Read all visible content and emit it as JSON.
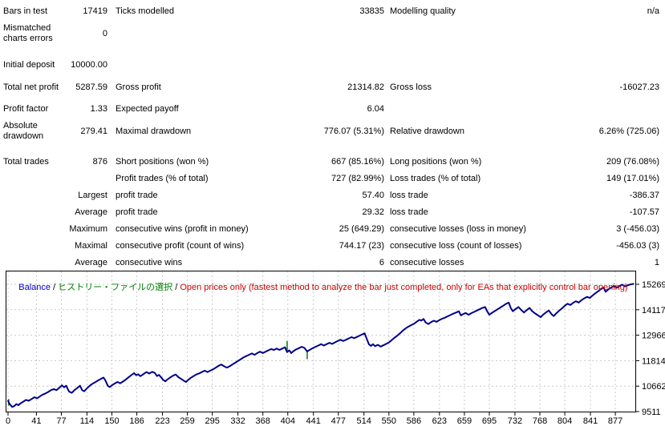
{
  "report": {
    "rows": [
      {
        "label1": "Bars in test",
        "value1": "17419",
        "label2": "Ticks modelled",
        "value2": "33835",
        "label3": "Modelling quality",
        "value3": "n/a"
      },
      {
        "label1": "Mismatched charts errors",
        "value1": "0",
        "label2": "",
        "value2": "",
        "label3": "",
        "value3": ""
      },
      {
        "label1": "Initial deposit",
        "value1": "10000.00",
        "label2": "",
        "value2": "",
        "label3": "",
        "value3": ""
      },
      {
        "label1": "Total net profit",
        "value1": "5287.59",
        "label2": "Gross profit",
        "value2": "21314.82",
        "label3": "Gross loss",
        "value3": "-16027.23"
      },
      {
        "label1": "Profit factor",
        "value1": "1.33",
        "label2": "Expected payoff",
        "value2": "6.04",
        "label3": "",
        "value3": ""
      },
      {
        "label1": "Absolute drawdown",
        "value1": "279.41",
        "label2": "Maximal drawdown",
        "value2": "776.07 (5.31%)",
        "label3": "Relative drawdown",
        "value3": "6.26% (725.06)"
      },
      {
        "label1": "Total trades",
        "value1": "876",
        "label2": "Short positions (won %)",
        "value2": "667 (85.16%)",
        "label3": "Long positions (won %)",
        "value3": "209 (76.08%)"
      },
      {
        "label1": "",
        "value1": "",
        "label2": "Profit trades (% of total)",
        "value2": "727 (82.99%)",
        "label3": "Loss trades (% of total)",
        "value3": "149 (17.01%)"
      },
      {
        "label1": "",
        "value1": "Largest",
        "label2": "profit trade",
        "value2": "57.40",
        "label3": "loss trade",
        "value3": "-386.37"
      },
      {
        "label1": "",
        "value1": "Average",
        "label2": "profit trade",
        "value2": "29.32",
        "label3": "loss trade",
        "value3": "-107.57"
      },
      {
        "label1": "",
        "value1": "Maximum",
        "label2": "consecutive wins (profit in money)",
        "value2": "25 (649.29)",
        "label3": "consecutive losses (loss in money)",
        "value3": "3 (-456.03)"
      },
      {
        "label1": "",
        "value1": "Maximal",
        "label2": "consecutive profit (count of wins)",
        "value2": "744.17 (23)",
        "label3": "consecutive loss (count of losses)",
        "value3": "-456.03 (3)"
      },
      {
        "label1": "",
        "value1": "Average",
        "label2": "consecutive wins",
        "value2": "6",
        "label3": "consecutive losses",
        "value3": "1"
      }
    ]
  },
  "chart": {
    "legend": {
      "balance": "Balance",
      "sep": " / ",
      "history": "ヒストリー・ファイルの選択",
      "note": "Open prices only (fastest method to analyze the bar just completed, only for EAs that explicitly control bar opening)"
    },
    "colors": {
      "balance_label": "#0000CC",
      "history_label": "#008000",
      "note_label": "#CC0000",
      "curve": "#00008B",
      "marker": "#008000",
      "grid": "#C9C9C9",
      "axis": "#000000"
    }
  },
  "chart_data": {
    "type": "line",
    "title": "Balance",
    "legend_position": "top-left",
    "grid": true,
    "y_ticks": [
      15269,
      14117,
      12966,
      11814,
      10662,
      9511
    ],
    "x_ticks": [
      0,
      41,
      77,
      114,
      150,
      186,
      223,
      259,
      295,
      332,
      368,
      404,
      441,
      477,
      514,
      550,
      586,
      623,
      659,
      695,
      732,
      768,
      804,
      841,
      877
    ],
    "ylim": [
      9511,
      15885
    ],
    "xlim": [
      0,
      906
    ],
    "series": [
      {
        "name": "Balance",
        "color": "#00008B",
        "x": [
          0,
          2,
          4,
          6,
          9,
          12,
          15,
          18,
          22,
          26,
          30,
          34,
          38,
          42,
          46,
          50,
          54,
          58,
          62,
          66,
          70,
          74,
          78,
          81,
          84,
          88,
          92,
          96,
          100,
          104,
          107,
          110,
          114,
          118,
          122,
          126,
          130,
          134,
          138,
          141,
          144,
          147,
          150,
          154,
          158,
          162,
          166,
          170,
          174,
          178,
          182,
          185,
          188,
          191,
          194,
          197,
          200,
          204,
          208,
          212,
          215,
          218,
          221,
          224,
          227,
          230,
          234,
          238,
          242,
          246,
          250,
          254,
          257,
          260,
          264,
          268,
          272,
          276,
          280,
          284,
          288,
          292,
          296,
          300,
          304,
          308,
          312,
          316,
          320,
          324,
          328,
          332,
          336,
          340,
          344,
          348,
          352,
          356,
          360,
          364,
          368,
          372,
          376,
          380,
          384,
          388,
          392,
          396,
          400,
          403,
          406,
          409,
          412,
          416,
          420,
          424,
          428,
          432,
          436,
          440,
          444,
          448,
          452,
          456,
          460,
          464,
          468,
          472,
          476,
          480,
          484,
          488,
          492,
          496,
          500,
          504,
          508,
          512,
          515,
          518,
          521,
          524,
          527,
          530,
          534,
          538,
          542,
          546,
          550,
          554,
          558,
          562,
          566,
          570,
          574,
          578,
          582,
          586,
          590,
          594,
          597,
          600,
          603,
          607,
          611,
          615,
          619,
          623,
          627,
          631,
          635,
          639,
          643,
          647,
          651,
          654,
          657,
          661,
          665,
          669,
          673,
          677,
          681,
          685,
          689,
          692,
          695,
          699,
          703,
          707,
          711,
          715,
          719,
          723,
          726,
          729,
          733,
          737,
          741,
          745,
          749,
          753,
          757,
          761,
          765,
          769,
          773,
          777,
          781,
          785,
          788,
          792,
          796,
          800,
          804,
          808,
          812,
          816,
          820,
          824,
          828,
          832,
          836,
          840,
          844,
          848,
          852,
          856,
          860,
          863,
          867,
          871,
          875,
          879,
          883,
          887,
          891,
          895,
          899,
          903
        ],
        "y": [
          10000,
          9870,
          9790,
          9721,
          9760,
          9850,
          9800,
          9880,
          9960,
          10040,
          10000,
          10080,
          10160,
          10110,
          10200,
          10280,
          10330,
          10400,
          10480,
          10530,
          10480,
          10590,
          10700,
          10610,
          10680,
          10420,
          10360,
          10480,
          10580,
          10680,
          10480,
          10430,
          10560,
          10680,
          10770,
          10840,
          10920,
          10990,
          11050,
          10900,
          10680,
          10620,
          10700,
          10780,
          10850,
          10790,
          10870,
          10960,
          11060,
          11160,
          11250,
          11160,
          11200,
          11110,
          11170,
          11240,
          11300,
          11230,
          11310,
          11260,
          11120,
          11170,
          11060,
          10950,
          10880,
          10960,
          11050,
          11130,
          11190,
          11070,
          10990,
          10900,
          10850,
          10940,
          11040,
          11120,
          11190,
          11240,
          11300,
          11360,
          11300,
          11360,
          11420,
          11500,
          11580,
          11640,
          11560,
          11500,
          11560,
          11640,
          11720,
          11800,
          11880,
          11960,
          12020,
          12080,
          12140,
          12080,
          12160,
          12220,
          12160,
          12220,
          12280,
          12340,
          12300,
          12360,
          12300,
          12360,
          12420,
          12200,
          12280,
          12160,
          12240,
          12320,
          12380,
          12440,
          12390,
          12230,
          12310,
          12380,
          12440,
          12500,
          12560,
          12500,
          12560,
          12620,
          12570,
          12640,
          12700,
          12760,
          12700,
          12760,
          12820,
          12880,
          12830,
          12890,
          12950,
          13010,
          13050,
          12800,
          12560,
          12480,
          12560,
          12470,
          12530,
          12450,
          12510,
          12570,
          12640,
          12740,
          12850,
          12940,
          13050,
          13170,
          13270,
          13350,
          13420,
          13480,
          13570,
          13660,
          13630,
          13700,
          13540,
          13470,
          13560,
          13620,
          13570,
          13650,
          13710,
          13760,
          13820,
          13880,
          13940,
          13990,
          14050,
          13860,
          13920,
          13970,
          13890,
          13960,
          14020,
          14080,
          14140,
          14200,
          14240,
          14040,
          13890,
          13980,
          14060,
          14140,
          14220,
          14300,
          14380,
          14440,
          14190,
          14050,
          14150,
          14240,
          14110,
          13990,
          14100,
          14200,
          14050,
          13950,
          13870,
          13780,
          13900,
          14000,
          14080,
          13910,
          13830,
          13960,
          14080,
          14180,
          14300,
          14390,
          14330,
          14430,
          14500,
          14440,
          14550,
          14630,
          14700,
          14650,
          14760,
          14860,
          14950,
          15050,
          15120,
          14930,
          15040,
          15120,
          15200,
          15110,
          15190,
          15250,
          15170,
          15230,
          15260,
          15288
        ]
      }
    ],
    "markers": [
      {
        "x": 1,
        "y1": 9780,
        "y2": 10080
      },
      {
        "x": 403,
        "y1": 12180,
        "y2": 12700
      },
      {
        "x": 432,
        "y1": 12230,
        "y2": 11880
      }
    ]
  }
}
